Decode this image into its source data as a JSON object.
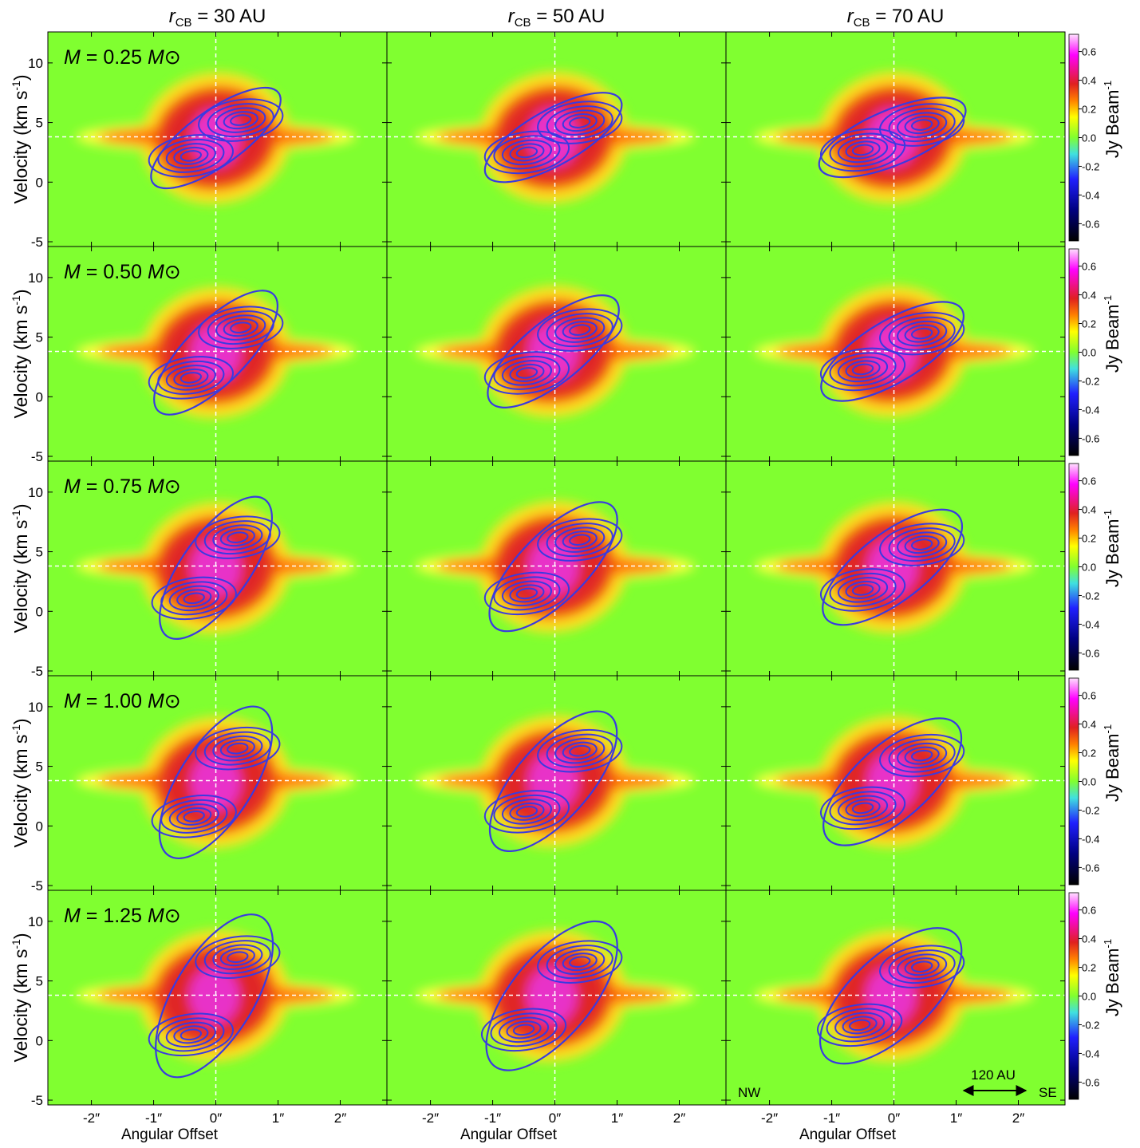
{
  "chart_data": {
    "type": "pv-grid",
    "column_titles": [
      {
        "symbol": "r",
        "subscript": "CB",
        "text": " = 30 AU"
      },
      {
        "symbol": "r",
        "subscript": "CB",
        "text": " = 50 AU"
      },
      {
        "symbol": "r",
        "subscript": "CB",
        "text": " = 70 AU"
      }
    ],
    "row_labels": [
      {
        "symbol": "M",
        "text": " = 0.25 ",
        "unit": "M⊙"
      },
      {
        "symbol": "M",
        "text": " = 0.50 ",
        "unit": "M⊙"
      },
      {
        "symbol": "M",
        "text": " = 0.75 ",
        "unit": "M⊙"
      },
      {
        "symbol": "M",
        "text": " = 1.00 ",
        "unit": "M⊙"
      },
      {
        "symbol": "M",
        "text": " = 1.25 ",
        "unit": "M⊙"
      }
    ],
    "x_label": "Angular Offset",
    "y_label": {
      "text": "Velocity (km s",
      "superscript": "-1",
      "end": ")"
    },
    "xlim": [
      -2.7,
      2.75
    ],
    "ylim": [
      -5.4,
      12.6
    ],
    "xticks": [
      {
        "value": -2,
        "label": "-2″"
      },
      {
        "value": -1,
        "label": "-1″"
      },
      {
        "value": 0,
        "label": "0″"
      },
      {
        "value": 1,
        "label": "1″"
      },
      {
        "value": 2,
        "label": "2″"
      }
    ],
    "yticks": [
      -5,
      0,
      5,
      10
    ],
    "reference_lines": {
      "x": 0,
      "y": 3.8
    },
    "colorbar": {
      "label": {
        "text": "Jy Beam",
        "superscript": "-1"
      },
      "clim": [
        -0.72,
        0.72
      ],
      "ticks": [
        -0.6,
        -0.4,
        -0.2,
        {
          "value": 0,
          "label": "0.0"
        },
        0.2,
        0.4,
        0.6
      ]
    },
    "panels": [
      [
        {
          "peaks": [
            [
              -0.4,
              2.2
            ],
            [
              0.4,
              5.2
            ]
          ]
        },
        {
          "peaks": [
            [
              -0.45,
              2.5
            ],
            [
              0.4,
              5.0
            ]
          ]
        },
        {
          "peaks": [
            [
              -0.5,
              2.7
            ],
            [
              0.45,
              4.8
            ]
          ]
        }
      ],
      [
        {
          "peaks": [
            [
              -0.4,
              1.6
            ],
            [
              0.4,
              5.8
            ]
          ]
        },
        {
          "peaks": [
            [
              -0.45,
              2.0
            ],
            [
              0.4,
              5.6
            ]
          ]
        },
        {
          "peaks": [
            [
              -0.5,
              2.3
            ],
            [
              0.45,
              5.3
            ]
          ]
        }
      ],
      [
        {
          "peaks": [
            [
              -0.35,
              1.1
            ],
            [
              0.35,
              6.2
            ]
          ]
        },
        {
          "peaks": [
            [
              -0.45,
              1.5
            ],
            [
              0.4,
              6.0
            ]
          ]
        },
        {
          "peaks": [
            [
              -0.5,
              1.8
            ],
            [
              0.45,
              5.6
            ]
          ]
        }
      ],
      [
        {
          "peaks": [
            [
              -0.35,
              0.8
            ],
            [
              0.35,
              6.5
            ]
          ]
        },
        {
          "peaks": [
            [
              -0.45,
              1.2
            ],
            [
              0.4,
              6.3
            ]
          ]
        },
        {
          "peaks": [
            [
              -0.5,
              1.5
            ],
            [
              0.45,
              5.9
            ]
          ]
        }
      ],
      [
        {
          "peaks": [
            [
              -0.4,
              0.5
            ],
            [
              0.35,
              7.0
            ]
          ]
        },
        {
          "peaks": [
            [
              -0.5,
              0.9
            ],
            [
              0.4,
              6.6
            ]
          ]
        },
        {
          "peaks": [
            [
              -0.55,
              1.3
            ],
            [
              0.45,
              6.2
            ]
          ]
        }
      ]
    ],
    "annotations": {
      "left": "NW",
      "right": "SE",
      "scale": "120 AU"
    }
  }
}
